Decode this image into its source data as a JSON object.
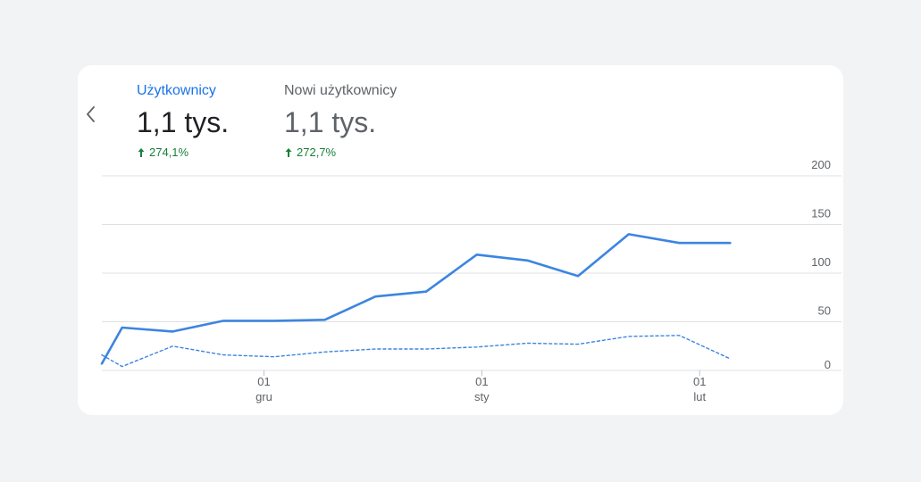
{
  "metrics": [
    {
      "label": "Użytkownicy",
      "value": "1,1 tys.",
      "change": "274,1%",
      "direction": "up",
      "selected": true
    },
    {
      "label": "Nowi użytkownicy",
      "value": "1,1 tys.",
      "change": "272,7%",
      "direction": "up",
      "selected": false
    }
  ],
  "colors": {
    "primary": "#1a73e8",
    "series": "#3c85e0",
    "positive": "#188038",
    "grid": "#e0e0e0",
    "muted": "#5f6368"
  },
  "chart_data": {
    "type": "line",
    "y_ticks": [
      "200",
      "150",
      "100",
      "50",
      "0"
    ],
    "ylim": [
      0,
      200
    ],
    "x_ticks": [
      {
        "day": "01",
        "month": "gru",
        "x": 3.2
      },
      {
        "day": "01",
        "month": "sty",
        "x": 7.5
      },
      {
        "day": "01",
        "month": "lut",
        "x": 11.8
      }
    ],
    "grid": true,
    "series": [
      {
        "style": "solid",
        "x": [
          0,
          0.4,
          1.4,
          2.4,
          3.4,
          4.4,
          5.4,
          6.4,
          7.4,
          8.4,
          9.4,
          10.4,
          11.4,
          12.4
        ],
        "values": [
          7,
          44,
          40,
          51,
          51,
          52,
          76,
          81,
          119,
          113,
          97,
          140,
          131,
          131
        ]
      },
      {
        "style": "dotted",
        "x": [
          0,
          0.4,
          1.4,
          2.4,
          3.4,
          4.4,
          5.4,
          6.4,
          7.4,
          8.4,
          9.4,
          10.4,
          11.4,
          12.4
        ],
        "values": [
          16,
          4,
          25,
          16,
          14,
          19,
          22,
          22,
          24,
          28,
          27,
          35,
          36,
          12
        ]
      }
    ]
  }
}
